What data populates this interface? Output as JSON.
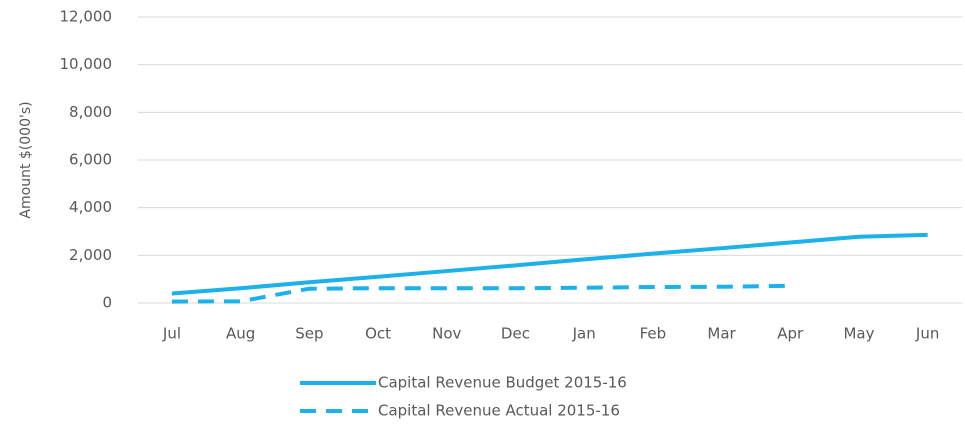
{
  "chart_data": {
    "type": "line",
    "y_axis_label": "Amount $(000's)",
    "categories": [
      "Jul",
      "Aug",
      "Sep",
      "Oct",
      "Nov",
      "Dec",
      "Jan",
      "Feb",
      "Mar",
      "Apr",
      "May",
      "Jun"
    ],
    "series": [
      {
        "name": "Capital Revenue Budget 2015-16",
        "color": "#1cb1e8",
        "line_style": "solid",
        "values": [
          400,
          620,
          870,
          1100,
          1340,
          1580,
          1830,
          2070,
          2300,
          2540,
          2780,
          2860
        ]
      },
      {
        "name": "Capital Revenue Actual 2015-16",
        "color": "#1cb1e8",
        "line_style": "dashed",
        "values": [
          60,
          70,
          600,
          620,
          620,
          620,
          640,
          670,
          680,
          720,
          null,
          null
        ]
      }
    ],
    "ylim": [
      0,
      12000
    ],
    "yticks": [
      0,
      {
        "value": 2000,
        "label": "2,000"
      },
      {
        "value": 4000,
        "label": "4,000"
      },
      {
        "value": 6000,
        "label": "6,000"
      },
      {
        "value": 8000,
        "label": "8,000"
      },
      {
        "value": 10000,
        "label": "10,000"
      },
      {
        "value": 12000,
        "label": "12,000"
      }
    ],
    "grid": true,
    "legend": "bottom"
  }
}
